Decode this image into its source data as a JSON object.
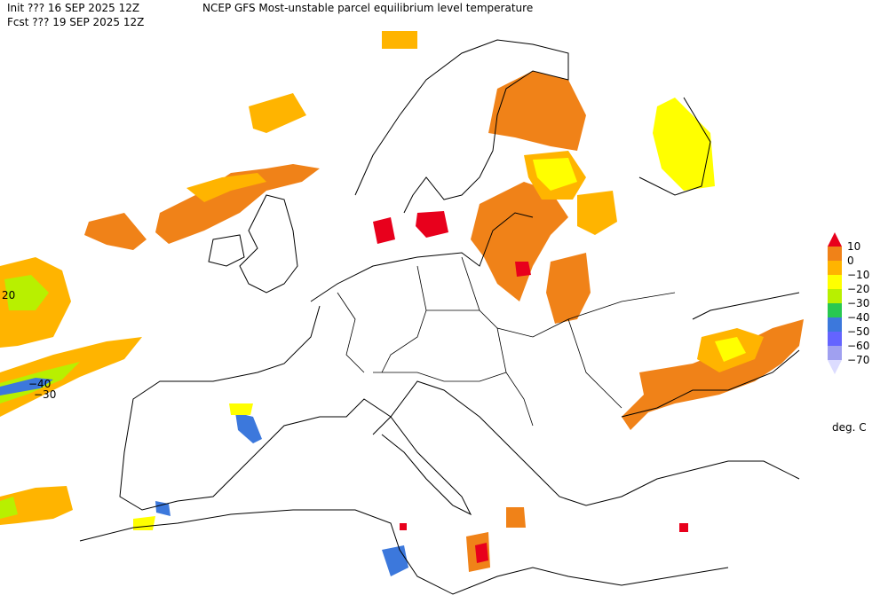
{
  "header": {
    "init": "Init  ???  16 SEP 2025 12Z",
    "title": "NCEP GFS Most-unstable parcel equilibrium level temperature",
    "fcst": "Fcst ??? 19 SEP 2025 12Z"
  },
  "legend": {
    "colors": [
      "#e8001c",
      "#f08218",
      "#ffb400",
      "#ffff00",
      "#b8f000",
      "#28c850",
      "#3c78dc",
      "#6464ff",
      "#a0a0f0",
      "#dcdcff"
    ],
    "labels": [
      "10",
      "0",
      "−10",
      "−20",
      "−30",
      "−40",
      "−50",
      "−60",
      "−70"
    ],
    "unit": "deg. C"
  },
  "map": {
    "contour_labels": [
      "20",
      "−40",
      "−30"
    ]
  }
}
